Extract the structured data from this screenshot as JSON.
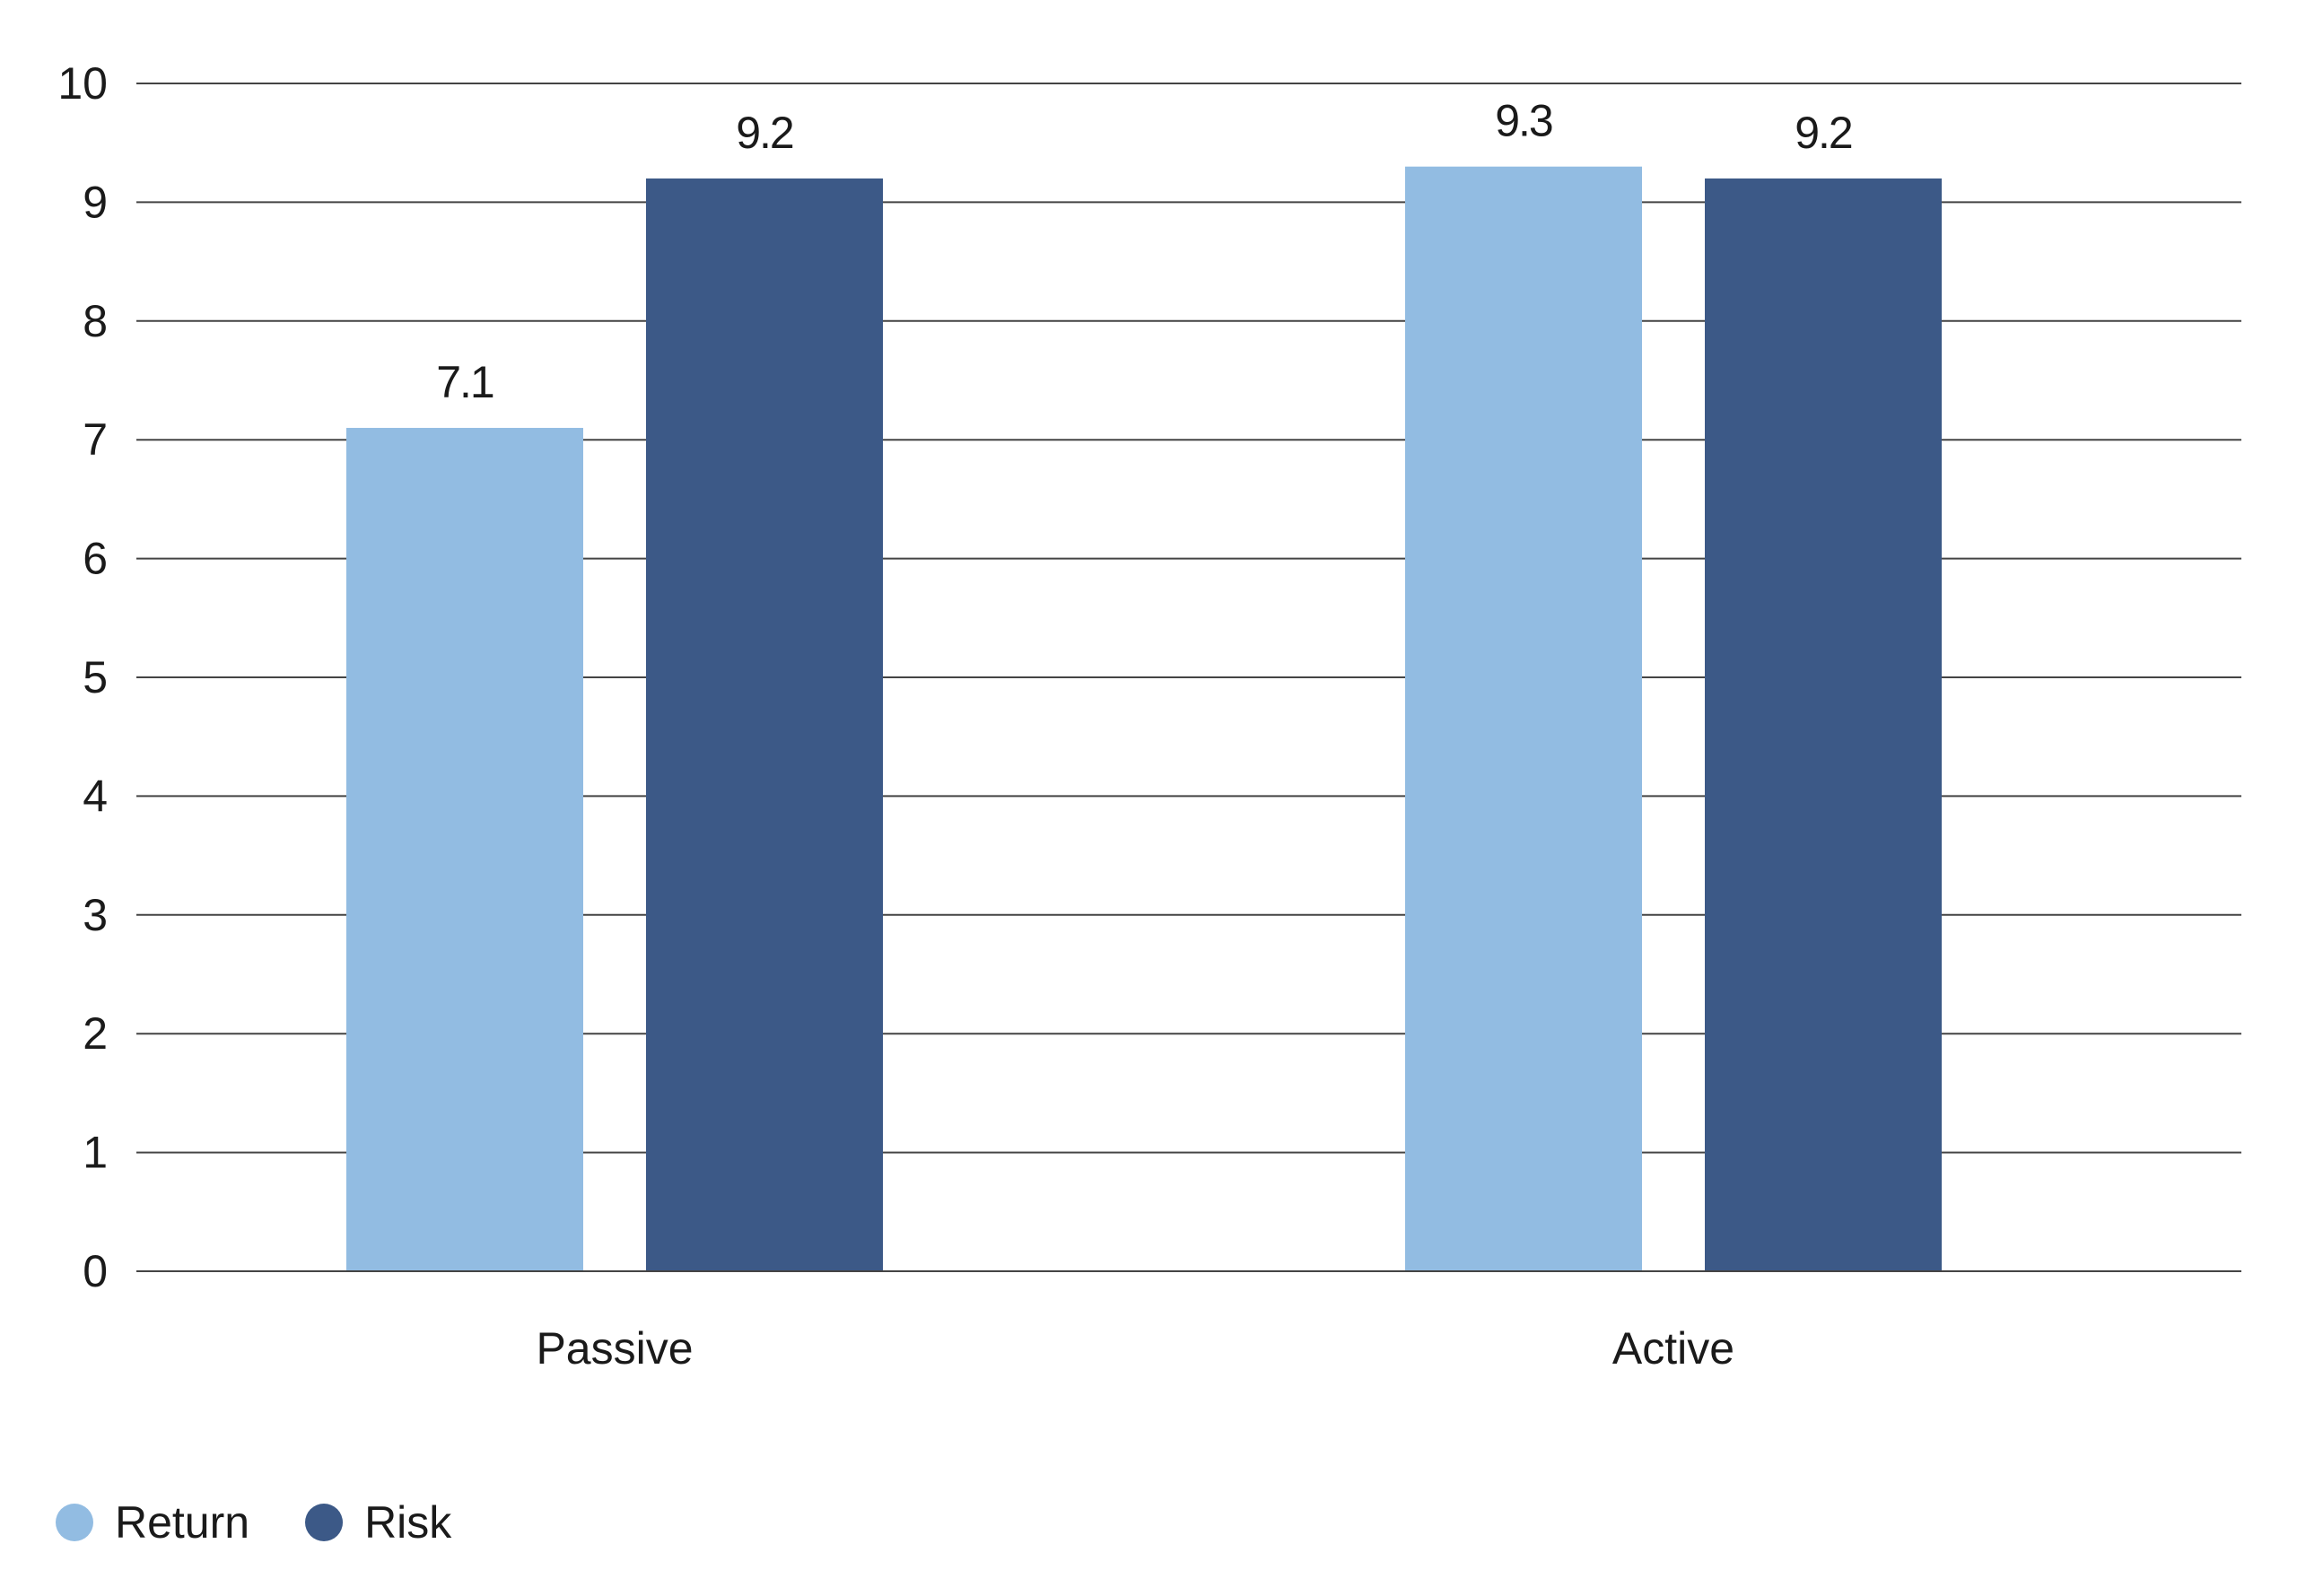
{
  "chart_data": {
    "type": "bar",
    "categories": [
      "Passive",
      "Active"
    ],
    "series": [
      {
        "name": "Return",
        "values": [
          7.1,
          9.3
        ],
        "labels": [
          "7.1",
          "9.3"
        ],
        "color": "#92bce2"
      },
      {
        "name": "Risk",
        "values": [
          9.2,
          9.2
        ],
        "labels": [
          "9.2",
          "9.2"
        ],
        "color": "#3c5987"
      }
    ],
    "ylim": [
      0,
      10
    ],
    "yticks": [
      "0",
      "1",
      "2",
      "3",
      "4",
      "5",
      "6",
      "7",
      "8",
      "9",
      "10"
    ],
    "grid": true,
    "legend_position": "bottom-left"
  }
}
